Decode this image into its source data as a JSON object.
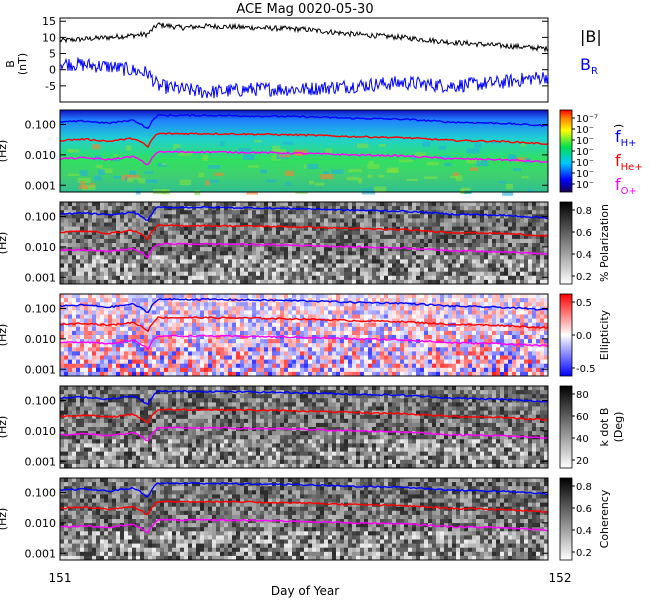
{
  "title": "ACE Mag 0020-05-30",
  "xlabel": "Day of Year",
  "x_ticks": [
    "151",
    "152"
  ],
  "colors": {
    "H": "#0000ff",
    "He": "#ff0000",
    "O": "#ff00ff",
    "B": "#000000",
    "BR": "#0000ff"
  },
  "chart_data": [
    {
      "type": "line",
      "id": "mag",
      "ylabel": "B (nT)",
      "ylabel_line1": "B",
      "ylabel_line2": "(nT)",
      "x": [
        151,
        152
      ],
      "ylim": [
        -10,
        16
      ],
      "yticks": [
        "-5",
        "0",
        "5",
        "10",
        "15"
      ],
      "ytick_values": [
        -5,
        0,
        5,
        10,
        15
      ],
      "legend": {
        "b": "|B|",
        "br_main": "B",
        "br_sub": "R"
      },
      "series": [
        {
          "name": "|B|",
          "key": "B",
          "x": [
            151.0,
            151.1,
            151.18,
            151.2,
            151.25,
            151.3,
            151.4,
            151.5,
            151.6,
            151.7,
            151.8,
            151.9,
            152.0
          ],
          "values": [
            9,
            10,
            11,
            14,
            13,
            13.5,
            13,
            12.5,
            11,
            10,
            8.5,
            7.5,
            6.5
          ]
        },
        {
          "name": "B_R",
          "key": "BR",
          "x": [
            151.0,
            151.1,
            151.18,
            151.2,
            151.25,
            151.3,
            151.4,
            151.5,
            151.6,
            151.7,
            151.8,
            151.9,
            152.0
          ],
          "values": [
            2,
            1,
            -1,
            -5,
            -6,
            -7,
            -6,
            -6,
            -5,
            -4,
            -5,
            -4,
            -2
          ]
        }
      ]
    },
    {
      "type": "heatmap",
      "id": "power",
      "ylabel": "(Hz)",
      "yticks": [
        "0.100",
        "0.010",
        "0.001"
      ],
      "colorbar": {
        "scale": "rainbow",
        "ticks": [
          "10⁻⁷",
          "10⁻",
          "10⁻",
          "10⁻",
          "10⁻",
          "10⁻",
          "10⁻"
        ],
        "label": ")"
      },
      "legend": [
        {
          "main": "f",
          "sub": "H+",
          "key": "H"
        },
        {
          "main": "f",
          "sub": "He+",
          "key": "He"
        },
        {
          "main": "f",
          "sub": "O+",
          "key": "O"
        }
      ]
    },
    {
      "type": "heatmap",
      "id": "polarization",
      "ylabel": "(Hz)",
      "yticks": [
        "0.100",
        "0.010",
        "0.001"
      ],
      "colorbar": {
        "scale": "gray",
        "ticks": [
          "0.8",
          "0.6",
          "0.4",
          "0.2"
        ],
        "label": "% Polarization"
      }
    },
    {
      "type": "heatmap",
      "id": "ellipticity",
      "ylabel": "(Hz)",
      "yticks": [
        "0.100",
        "0.010",
        "0.001"
      ],
      "colorbar": {
        "scale": "bwr",
        "ticks": [
          "0.5",
          "0.0",
          "-0.5"
        ],
        "label": "Ellipticity"
      }
    },
    {
      "type": "heatmap",
      "id": "kdotb",
      "ylabel": "(Hz)",
      "yticks": [
        "0.100",
        "0.010",
        "0.001"
      ],
      "colorbar": {
        "scale": "gray",
        "ticks": [
          "80",
          "60",
          "40",
          "20"
        ],
        "label": "k dot B",
        "label2": "(Deg)"
      }
    },
    {
      "type": "heatmap",
      "id": "coherency",
      "ylabel": "(Hz)",
      "yticks": [
        "0.100",
        "0.010",
        "0.001"
      ],
      "colorbar": {
        "scale": "gray",
        "ticks": [
          "0.8",
          "0.6",
          "0.4",
          "0.2"
        ],
        "label": "Coherency"
      }
    }
  ],
  "gyro_lines": {
    "x": [
      151.0,
      151.05,
      151.1,
      151.15,
      151.18,
      151.2,
      151.3,
      151.4,
      151.5,
      151.6,
      151.7,
      151.8,
      151.9,
      152.0
    ],
    "H_hz": [
      0.12,
      0.13,
      0.11,
      0.14,
      0.07,
      0.2,
      0.2,
      0.19,
      0.18,
      0.16,
      0.15,
      0.12,
      0.11,
      0.09
    ],
    "He_hz": [
      0.03,
      0.033,
      0.028,
      0.035,
      0.018,
      0.05,
      0.05,
      0.048,
      0.045,
      0.04,
      0.037,
      0.03,
      0.028,
      0.023
    ],
    "O_hz": [
      0.0075,
      0.008,
      0.007,
      0.0088,
      0.0045,
      0.0125,
      0.0125,
      0.012,
      0.0112,
      0.01,
      0.0093,
      0.0075,
      0.007,
      0.0058
    ]
  }
}
